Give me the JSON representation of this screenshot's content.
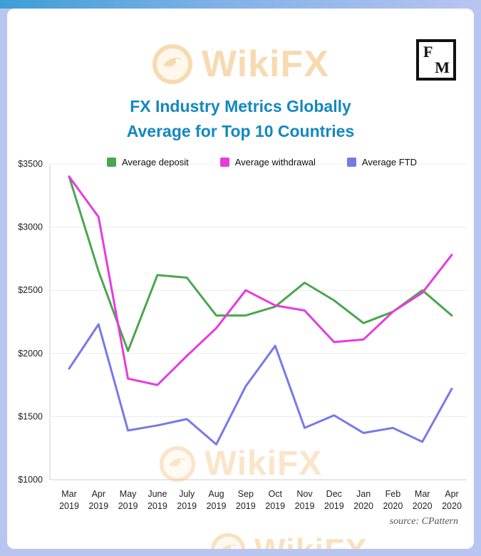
{
  "page": {
    "title_line1": "FX Industry Metrics Globally",
    "title_line2": "Average for Top 10 Countries",
    "watermark_text": "WikiFX",
    "source": "source: CPattern",
    "fm_logo": {
      "top_letter": "F",
      "bottom_letter": "M"
    },
    "title_color": "#1487c2",
    "frame_color": "#b9c5f1"
  },
  "chart_data": {
    "type": "line",
    "title": "FX Industry Metrics Globally Average for Top 10 Countries",
    "xlabel": "",
    "ylabel": "",
    "ylim": [
      1000,
      3500
    ],
    "grid": true,
    "legend_position": "top",
    "categories_line1": [
      "Mar",
      "Apr",
      "May",
      "June",
      "July",
      "Aug",
      "Sep",
      "Oct",
      "Nov",
      "Dec",
      "Jan",
      "Feb",
      "Mar",
      "Apr"
    ],
    "categories_line2": [
      "2019",
      "2019",
      "2019",
      "2019",
      "2019",
      "2019",
      "2019",
      "2019",
      "2019",
      "2019",
      "2020",
      "2020",
      "2020",
      "2020"
    ],
    "y_ticks": [
      {
        "label": "$3500",
        "value": 3500
      },
      {
        "label": "$3000",
        "value": 3000
      },
      {
        "label": "$2500",
        "value": 2500
      },
      {
        "label": "$2000",
        "value": 2000
      },
      {
        "label": "$1500",
        "value": 1500
      },
      {
        "label": "$1000",
        "value": 1000
      }
    ],
    "series": [
      {
        "name": "Average deposit",
        "color": "#4ca64f",
        "values": [
          3400,
          2650,
          2020,
          2620,
          2600,
          2300,
          2300,
          2370,
          2560,
          2420,
          2240,
          2330,
          2500,
          2300
        ]
      },
      {
        "name": "Average withdrawal",
        "color": "#e63be0",
        "values": [
          3400,
          3080,
          1800,
          1750,
          1980,
          2200,
          2500,
          2380,
          2340,
          2090,
          2110,
          2330,
          2480,
          2780
        ]
      },
      {
        "name": "Average FTD",
        "color": "#7779e8",
        "values": [
          1880,
          2230,
          1390,
          1430,
          1480,
          1280,
          1740,
          2060,
          1410,
          1510,
          1370,
          1410,
          1300,
          1720
        ]
      }
    ]
  }
}
